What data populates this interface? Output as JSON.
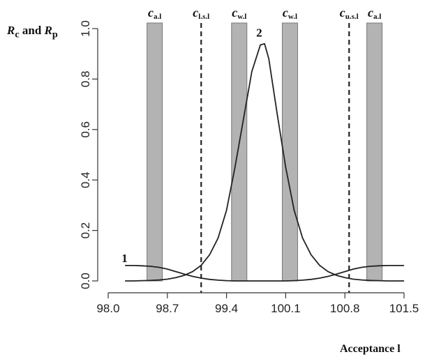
{
  "chart_data": {
    "type": "line",
    "ylabel": {
      "r1": "R",
      "s1": "c",
      "mid": " and ",
      "r2": "R",
      "s2": "p"
    },
    "xlabel": "Acceptance l",
    "xlim": [
      98.0,
      101.5
    ],
    "ylim": [
      0.0,
      1.0
    ],
    "x_ticks": [
      "98.0",
      "98.7",
      "99.4",
      "100.1",
      "100.8",
      "101.5"
    ],
    "y_ticks": [
      "0.0",
      "0.2",
      "0.4",
      "0.6",
      "0.8",
      "1.0"
    ],
    "bands": [
      {
        "x": 98.55,
        "sym": "c",
        "sub": "a.l"
      },
      {
        "x": 99.55,
        "sym": "c",
        "sub": "w.l"
      },
      {
        "x": 100.15,
        "sym": "c",
        "sub": "w.l"
      },
      {
        "x": 101.15,
        "sym": "c",
        "sub": "a.l"
      }
    ],
    "dashed_lines": [
      {
        "x": 99.1,
        "sym": "c",
        "sub": "l.s.l"
      },
      {
        "x": 100.85,
        "sym": "c",
        "sub": "u.s.l"
      }
    ],
    "series": [
      {
        "label": "1",
        "x": [
          98.2,
          98.3,
          98.4,
          98.5,
          98.6,
          98.7,
          98.8,
          98.9,
          99.0,
          99.1,
          99.2,
          99.3,
          99.4,
          99.5,
          99.6,
          99.7,
          99.8,
          99.9,
          100.0,
          100.1,
          100.2,
          100.3,
          100.4,
          100.5,
          100.6,
          100.7,
          100.8,
          100.9,
          101.0,
          101.1,
          101.2,
          101.3,
          101.4,
          101.5
        ],
        "y": [
          0.061,
          0.061,
          0.06,
          0.058,
          0.054,
          0.047,
          0.037,
          0.027,
          0.018,
          0.011,
          0.006,
          0.003,
          0.001,
          0.0,
          0.0,
          0.0,
          0.0,
          0.0,
          0.0,
          0.0,
          0.001,
          0.003,
          0.006,
          0.011,
          0.018,
          0.027,
          0.037,
          0.047,
          0.054,
          0.058,
          0.06,
          0.061,
          0.061,
          0.061
        ]
      },
      {
        "label": "2",
        "x": [
          98.2,
          98.3,
          98.4,
          98.5,
          98.6,
          98.7,
          98.8,
          98.9,
          99.0,
          99.1,
          99.2,
          99.3,
          99.4,
          99.5,
          99.6,
          99.7,
          99.8,
          99.85,
          99.9,
          100.0,
          100.1,
          100.2,
          100.3,
          100.4,
          100.5,
          100.6,
          100.7,
          100.8,
          100.9,
          101.0,
          101.1,
          101.2,
          101.3,
          101.4,
          101.5
        ],
        "y": [
          0.0,
          0.0,
          0.001,
          0.002,
          0.004,
          0.007,
          0.013,
          0.022,
          0.037,
          0.062,
          0.104,
          0.17,
          0.28,
          0.45,
          0.64,
          0.83,
          0.935,
          0.94,
          0.88,
          0.66,
          0.45,
          0.28,
          0.17,
          0.104,
          0.062,
          0.037,
          0.022,
          0.013,
          0.007,
          0.004,
          0.002,
          0.001,
          0.0,
          0.0,
          0.0
        ]
      }
    ],
    "colors": {
      "band": "#b3b3b3",
      "line": "#222222"
    }
  }
}
